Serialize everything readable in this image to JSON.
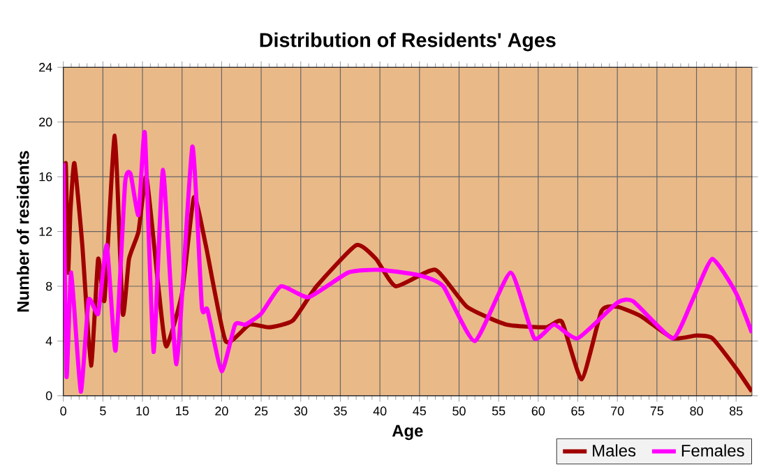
{
  "chart_data": {
    "type": "line",
    "title": "Distribution of Residents' Ages",
    "xlabel": "Age",
    "ylabel": "Number of residents",
    "xlim": [
      0,
      87
    ],
    "xticks": [
      0,
      5,
      10,
      15,
      20,
      25,
      30,
      35,
      40,
      45,
      50,
      55,
      60,
      65,
      70,
      75,
      80,
      85
    ],
    "ylim": [
      0,
      24
    ],
    "yticks": [
      0,
      4,
      8,
      12,
      16,
      20,
      24
    ],
    "grid": true,
    "legend": "bottom right",
    "marker": "none",
    "line_style": "solid",
    "series": [
      {
        "name": "Males",
        "color": "#a00000",
        "x": [
          0,
          0.3,
          0.6,
          0.9,
          1.4,
          2.4,
          3.5,
          4.4,
          5.2,
          6.5,
          7.5,
          8.3,
          9.5,
          10.5,
          12,
          13,
          15,
          16.5,
          18,
          20.5,
          23.5,
          26,
          29,
          32,
          37,
          39.5,
          42,
          47,
          51,
          56,
          61,
          63,
          65.5,
          68,
          70,
          73,
          77,
          80,
          82,
          85,
          87
        ],
        "values": [
          7,
          17,
          9,
          13.5,
          17,
          11,
          2.2,
          10,
          7,
          19,
          6,
          10,
          12,
          16,
          8,
          3.6,
          7.5,
          14.5,
          11,
          4,
          5.2,
          5,
          5.5,
          8,
          11,
          10,
          8,
          9.2,
          6.5,
          5.2,
          5,
          5.4,
          1.2,
          6.2,
          6.5,
          5.8,
          4.2,
          4.4,
          4.2,
          2,
          0.3
        ]
      },
      {
        "name": "Females",
        "color": "#ff00ff",
        "x": [
          0,
          0.4,
          1,
          2.2,
          3.2,
          4.4,
          5.5,
          6.6,
          7.8,
          8.5,
          9.5,
          10.3,
          11.4,
          12.6,
          14.3,
          16.3,
          17.5,
          18.2,
          20,
          21.7,
          23,
          25,
          27.5,
          31,
          36,
          40,
          45,
          48,
          52,
          56.5,
          59.5,
          62,
          65,
          70,
          72,
          77,
          79.5,
          82,
          85,
          87
        ],
        "values": [
          17,
          1.4,
          9,
          0.3,
          7,
          6,
          11,
          3.3,
          15.5,
          16.2,
          13.2,
          19.2,
          3.2,
          16.5,
          2.3,
          18.2,
          6.5,
          6.3,
          1.8,
          5.2,
          5.2,
          6,
          8,
          7.2,
          9,
          9.2,
          8.8,
          8,
          4,
          9,
          4.2,
          5.2,
          4.2,
          6.8,
          6.9,
          4.2,
          7,
          10,
          7.5,
          4.6
        ]
      }
    ]
  }
}
